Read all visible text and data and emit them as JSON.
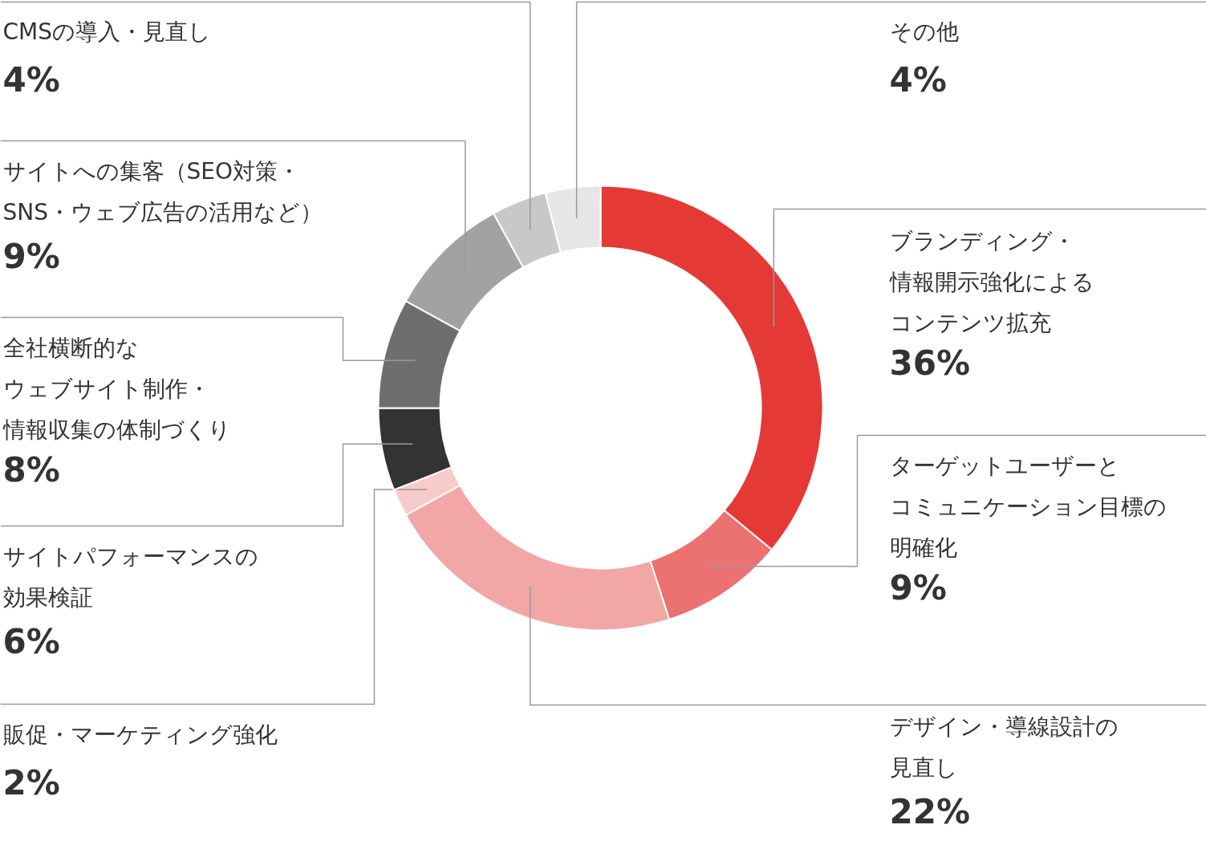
{
  "chart_data": {
    "type": "donut",
    "categories": [
      "ブランディング・情報開示強化によるコンテンツ拡充",
      "ターゲットユーザーとコミュニケーション目標の明確化",
      "デザイン・導線設計の見直し",
      "販促・マーケティング強化",
      "サイトパフォーマンスの効果検証",
      "全社横断的なウェブサイト制作・情報収集の体制づくり",
      "サイトへの集客（SEO対策・SNS・ウェブ広告の活用など）",
      "CMSの導入・見直し",
      "その他"
    ],
    "values": [
      36,
      9,
      22,
      2,
      6,
      8,
      9,
      4,
      4
    ],
    "value_labels": [
      "36%",
      "9%",
      "22%",
      "2%",
      "6%",
      "8%",
      "9%",
      "4%",
      "4%"
    ],
    "colors": [
      "#e53935",
      "#ec7171",
      "#f2a6a6",
      "#f8cbcb",
      "#333333",
      "#6e6e6e",
      "#a2a2a2",
      "#c8c8c8",
      "#e6e6e6"
    ]
  }
}
